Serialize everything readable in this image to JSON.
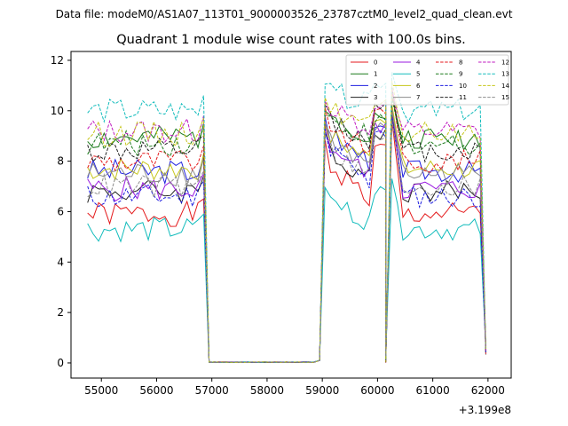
{
  "page_title": "Data file: modeM0/AS1A07_113T01_9000003526_23787cztM0_level2_quad_clean.evt",
  "chart_data": {
    "type": "line",
    "title": "Quadrant 1 module wise count rates with 100.0s bins.",
    "xlabel": "",
    "ylabel": "",
    "x_offset_label": "+3.199e8",
    "xlim": [
      54450,
      62420
    ],
    "ylim": [
      -0.6,
      12.35
    ],
    "x_ticks": [
      55000,
      56000,
      57000,
      58000,
      59000,
      60000,
      61000,
      62000
    ],
    "x_tick_labels": [
      "55000",
      "56000",
      "57000",
      "58000",
      "59000",
      "60000",
      "61000",
      "62000"
    ],
    "y_ticks": [
      0,
      2,
      4,
      6,
      8,
      10,
      12
    ],
    "y_tick_labels": [
      "0",
      "2",
      "4",
      "6",
      "8",
      "10",
      "12"
    ],
    "legend_position": "upper-right",
    "legend_columns": 4,
    "segments": [
      {
        "start": 54750,
        "n": 22
      },
      {
        "start": 56950,
        "n": 20
      },
      {
        "start": 58950,
        "n": 13
      },
      {
        "start": 60260,
        "n": 18
      }
    ],
    "series": [
      {
        "name": "0",
        "color": "#e41a1c",
        "dash": false,
        "base": 5.9,
        "peak": 9.0,
        "seed": 1
      },
      {
        "name": "1",
        "color": "#1a7a1a",
        "dash": false,
        "base": 8.9,
        "peak": 10.1,
        "seed": 2
      },
      {
        "name": "2",
        "color": "#1f1fe0",
        "dash": false,
        "base": 7.6,
        "peak": 9.8,
        "seed": 3
      },
      {
        "name": "3",
        "color": "#202020",
        "dash": false,
        "base": 6.8,
        "peak": 9.3,
        "seed": 4
      },
      {
        "name": "4",
        "color": "#9a1ae0",
        "dash": false,
        "base": 6.9,
        "peak": 9.6,
        "seed": 5
      },
      {
        "name": "5",
        "color": "#12bcbc",
        "dash": false,
        "base": 5.3,
        "peak": 7.0,
        "seed": 6
      },
      {
        "name": "6",
        "color": "#c6c61a",
        "dash": false,
        "base": 7.7,
        "peak": 9.7,
        "seed": 7
      },
      {
        "name": "7",
        "color": "#8c8c8c",
        "dash": false,
        "base": 7.5,
        "peak": 9.6,
        "seed": 8
      },
      {
        "name": "8",
        "color": "#e41a1c",
        "dash": true,
        "base": 8.0,
        "peak": 10.2,
        "seed": 9
      },
      {
        "name": "9",
        "color": "#1a7a1a",
        "dash": true,
        "base": 8.7,
        "peak": 10.0,
        "seed": 10
      },
      {
        "name": "10",
        "color": "#1f1fe0",
        "dash": true,
        "base": 6.6,
        "peak": 9.4,
        "seed": 11
      },
      {
        "name": "11",
        "color": "#202020",
        "dash": true,
        "base": 8.4,
        "peak": 10.3,
        "seed": 12
      },
      {
        "name": "12",
        "color": "#c01ac0",
        "dash": true,
        "base": 9.2,
        "peak": 10.4,
        "seed": 13
      },
      {
        "name": "13",
        "color": "#12bcbc",
        "dash": true,
        "base": 10.0,
        "peak": 11.2,
        "seed": 14
      },
      {
        "name": "14",
        "color": "#c6c61a",
        "dash": true,
        "base": 9.1,
        "peak": 10.6,
        "seed": 15
      },
      {
        "name": "15",
        "color": "#8c8c8c",
        "dash": true,
        "base": 7.0,
        "peak": 9.2,
        "seed": 16
      }
    ]
  }
}
